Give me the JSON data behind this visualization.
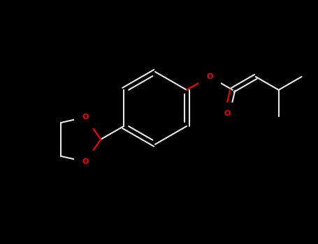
{
  "background_color": "#000000",
  "bond_color": "#e8e8e8",
  "oxygen_color": "#ff0000",
  "bond_lw": 1.5,
  "figsize": [
    4.55,
    3.5
  ],
  "dpi": 100,
  "xlim": [
    0,
    455
  ],
  "ylim": [
    0,
    350
  ]
}
